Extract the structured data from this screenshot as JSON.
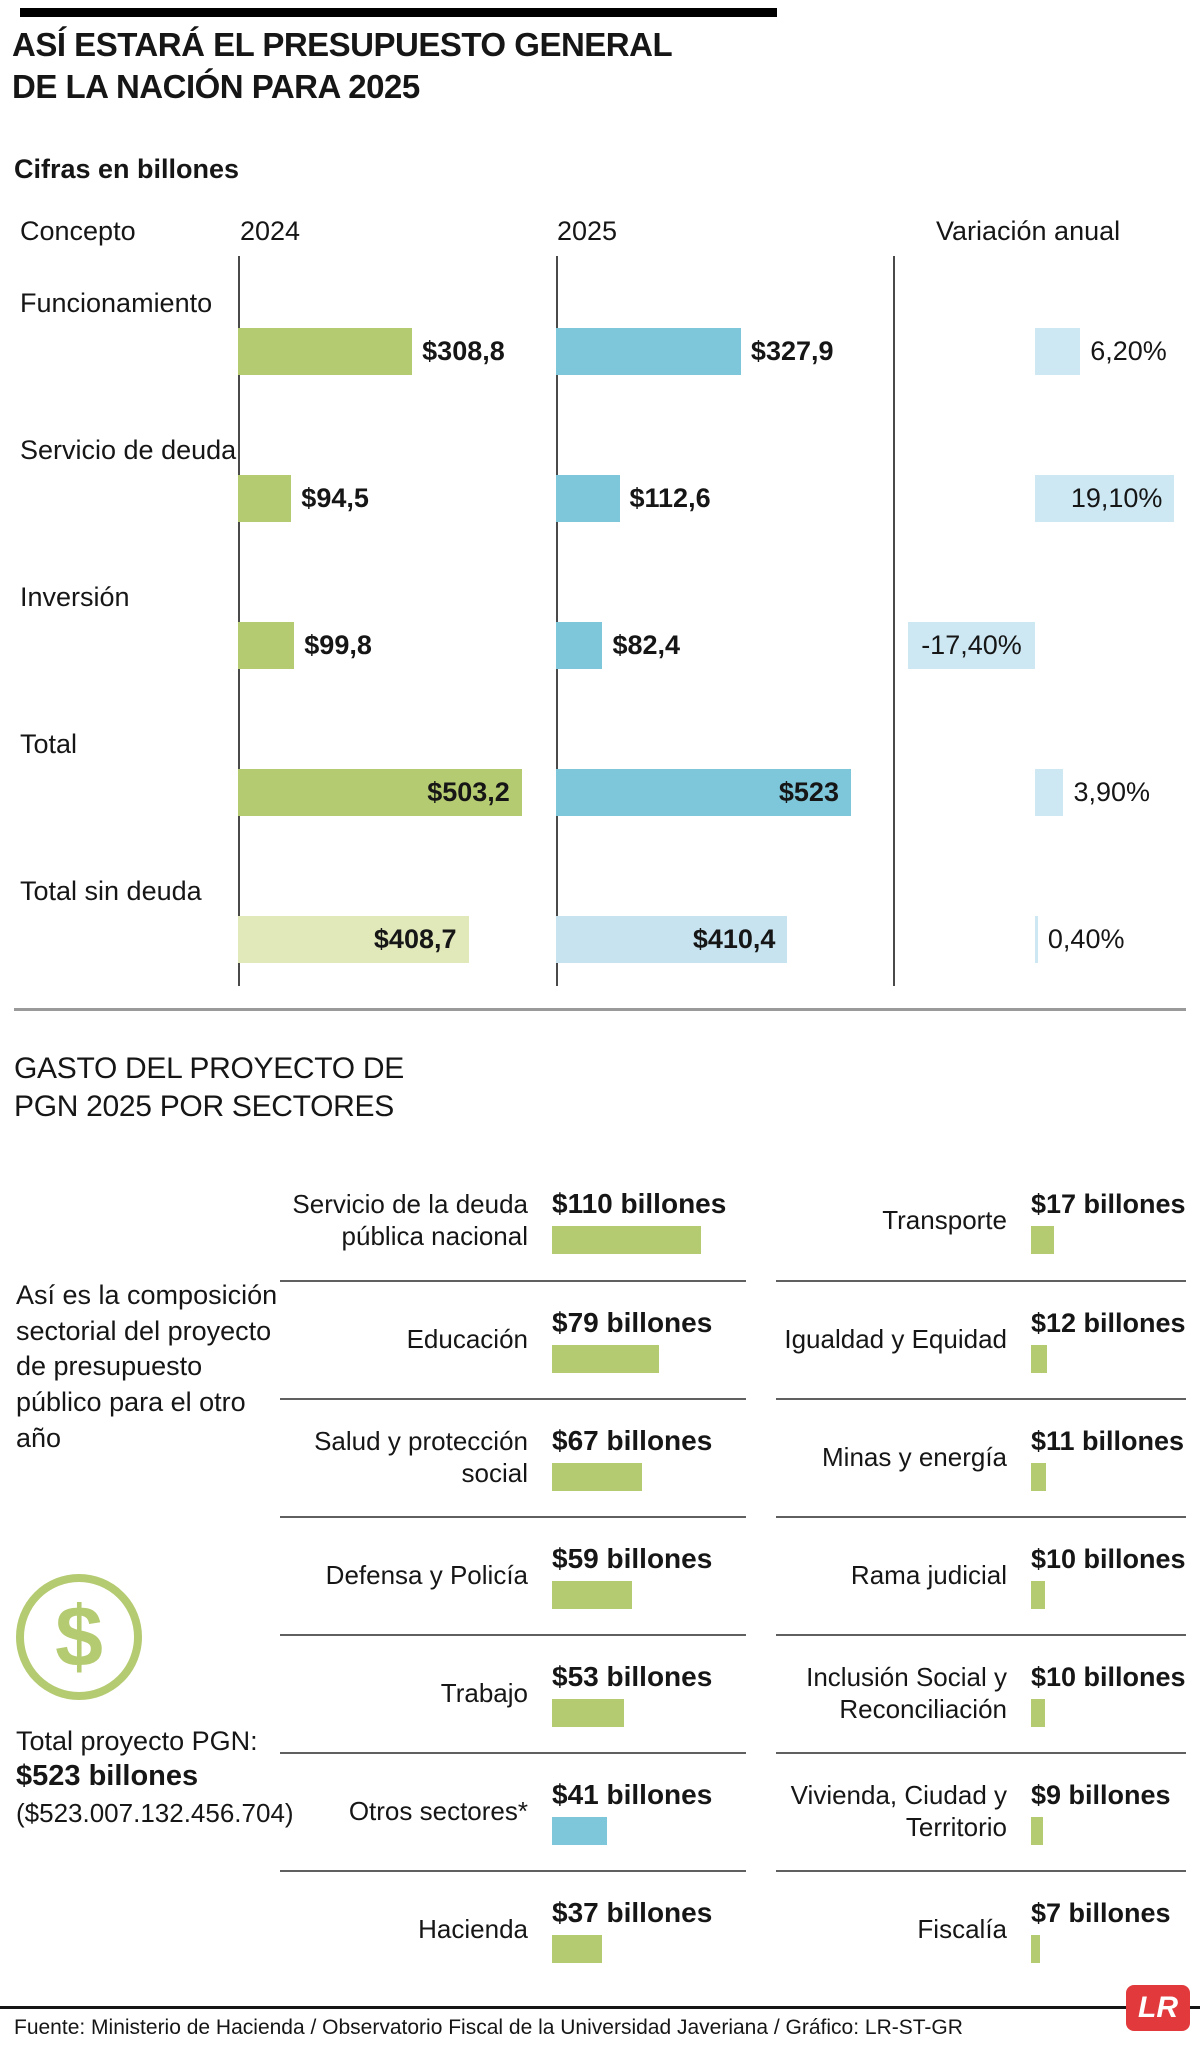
{
  "colors": {
    "green": "#b5cb72",
    "green_muted": "#e1e8ba",
    "blue": "#7ec6da",
    "blue_muted": "#c6e3ef",
    "variation_blue": "#cde8f3",
    "lr_red": "#e23a3c",
    "text": "#161616"
  },
  "header": {
    "title_line1": "ASÍ ESTARÁ EL PRESUPUESTO GENERAL",
    "title_line2": "DE LA NACIÓN PARA 2025",
    "subtitle": "Cifras en billones"
  },
  "comparison_chart": {
    "col_concepto": "Concepto",
    "col_2024": "2024",
    "col_2025": "2025",
    "col_variacion": "Variación anual",
    "rows": [
      {
        "concept": "Funcionamiento",
        "v2024": 308.8,
        "label_2024": "$308,8",
        "v2025": 327.9,
        "label_2025": "$327,9",
        "variation": 6.2,
        "label_variation": "6,20%",
        "muted": false
      },
      {
        "concept": "Servicio de deuda",
        "v2024": 94.5,
        "label_2024": "$94,5",
        "v2025": 112.6,
        "label_2025": "$112,6",
        "variation": 19.1,
        "label_variation": "19,10%",
        "muted": false
      },
      {
        "concept": "Inversión",
        "v2024": 99.8,
        "label_2024": "$99,8",
        "v2025": 82.4,
        "label_2025": "$82,4",
        "variation": -17.4,
        "label_variation": "-17,40%",
        "muted": false
      },
      {
        "concept": "Total",
        "v2024": 503.2,
        "label_2024": "$503,2",
        "v2025": 523,
        "label_2025": "$523",
        "variation": 3.9,
        "label_variation": "3,90%",
        "muted": false
      },
      {
        "concept": "Total sin deuda",
        "v2024": 408.7,
        "label_2024": "$408,7",
        "v2025": 410.4,
        "label_2025": "$410,4",
        "variation": 0.4,
        "label_variation": "0,40%",
        "muted": true
      }
    ]
  },
  "sectors": {
    "title_line1": "GASTO DEL PROYECTO DE",
    "title_line2": "PGN 2025 POR SECTORES",
    "description": "Así es la composición sectorial del proyecto de presupuesto público para el otro año",
    "dollar_symbol": "$",
    "total_label": "Total proyecto PGN:",
    "total_value": "$523 billones",
    "total_exact": "($523.007.132.456.704)",
    "left_rows": [
      {
        "name": "Servicio de la deuda pública nacional",
        "value": 110,
        "label": "$110 billones",
        "color": "green"
      },
      {
        "name": "Educación",
        "value": 79,
        "label": "$79 billones",
        "color": "green"
      },
      {
        "name": "Salud y protección social",
        "value": 67,
        "label": "$67 billones",
        "color": "green"
      },
      {
        "name": "Defensa y Policía",
        "value": 59,
        "label": "$59 billones",
        "color": "green"
      },
      {
        "name": "Trabajo",
        "value": 53,
        "label": "$53 billones",
        "color": "green"
      },
      {
        "name": "Otros sectores*",
        "value": 41,
        "label": "$41 billones",
        "color": "blue"
      },
      {
        "name": "Hacienda",
        "value": 37,
        "label": "$37 billones",
        "color": "green"
      }
    ],
    "right_rows": [
      {
        "name": "Transporte",
        "value": 17,
        "label": "$17 billones",
        "color": "green"
      },
      {
        "name": "Igualdad y Equidad",
        "value": 12,
        "label": "$12 billones",
        "color": "green"
      },
      {
        "name": "Minas y energía",
        "value": 11,
        "label": "$11 billones",
        "color": "green"
      },
      {
        "name": "Rama judicial",
        "value": 10,
        "label": "$10 billones",
        "color": "green"
      },
      {
        "name": "Inclusión Social y Reconciliación",
        "value": 10,
        "label": "$10 billones",
        "color": "green"
      },
      {
        "name": "Vivienda, Ciudad y Territorio",
        "value": 9,
        "label": "$9 billones",
        "color": "green"
      },
      {
        "name": "Fiscalía",
        "value": 7,
        "label": "$7 billones",
        "color": "green"
      }
    ]
  },
  "footer": {
    "source": "Fuente: Ministerio de Hacienda / Observatorio Fiscal de la Universidad Javeriana / Gráfico: LR-ST-GR",
    "logo": "LR"
  },
  "chart_data": [
    {
      "type": "bar",
      "orientation": "horizontal",
      "title": "Así estará el Presupuesto General de la Nación para 2025",
      "subtitle": "Cifras en billones",
      "categories": [
        "Funcionamiento",
        "Servicio de deuda",
        "Inversión",
        "Total",
        "Total sin deuda"
      ],
      "series": [
        {
          "name": "2024",
          "values": [
            308.8,
            94.5,
            99.8,
            503.2,
            408.7
          ],
          "unit": "billones"
        },
        {
          "name": "2025",
          "values": [
            327.9,
            112.6,
            82.4,
            523,
            410.4
          ],
          "unit": "billones"
        },
        {
          "name": "Variación anual",
          "values": [
            6.2,
            19.1,
            -17.4,
            3.9,
            0.4
          ],
          "unit": "%"
        }
      ],
      "grid": false,
      "legend_position": "column-headers"
    },
    {
      "type": "bar",
      "orientation": "horizontal",
      "title": "Gasto del proyecto de PGN 2025 por sectores",
      "unit": "billones",
      "categories": [
        "Servicio de la deuda pública nacional",
        "Educación",
        "Salud y protección social",
        "Defensa y Policía",
        "Trabajo",
        "Otros sectores*",
        "Hacienda",
        "Transporte",
        "Igualdad y Equidad",
        "Minas y energía",
        "Rama judicial",
        "Inclusión Social y Reconciliación",
        "Vivienda, Ciudad y Territorio",
        "Fiscalía"
      ],
      "values": [
        110,
        79,
        67,
        59,
        53,
        41,
        37,
        17,
        12,
        11,
        10,
        10,
        9,
        7
      ],
      "total": 523
    }
  ]
}
